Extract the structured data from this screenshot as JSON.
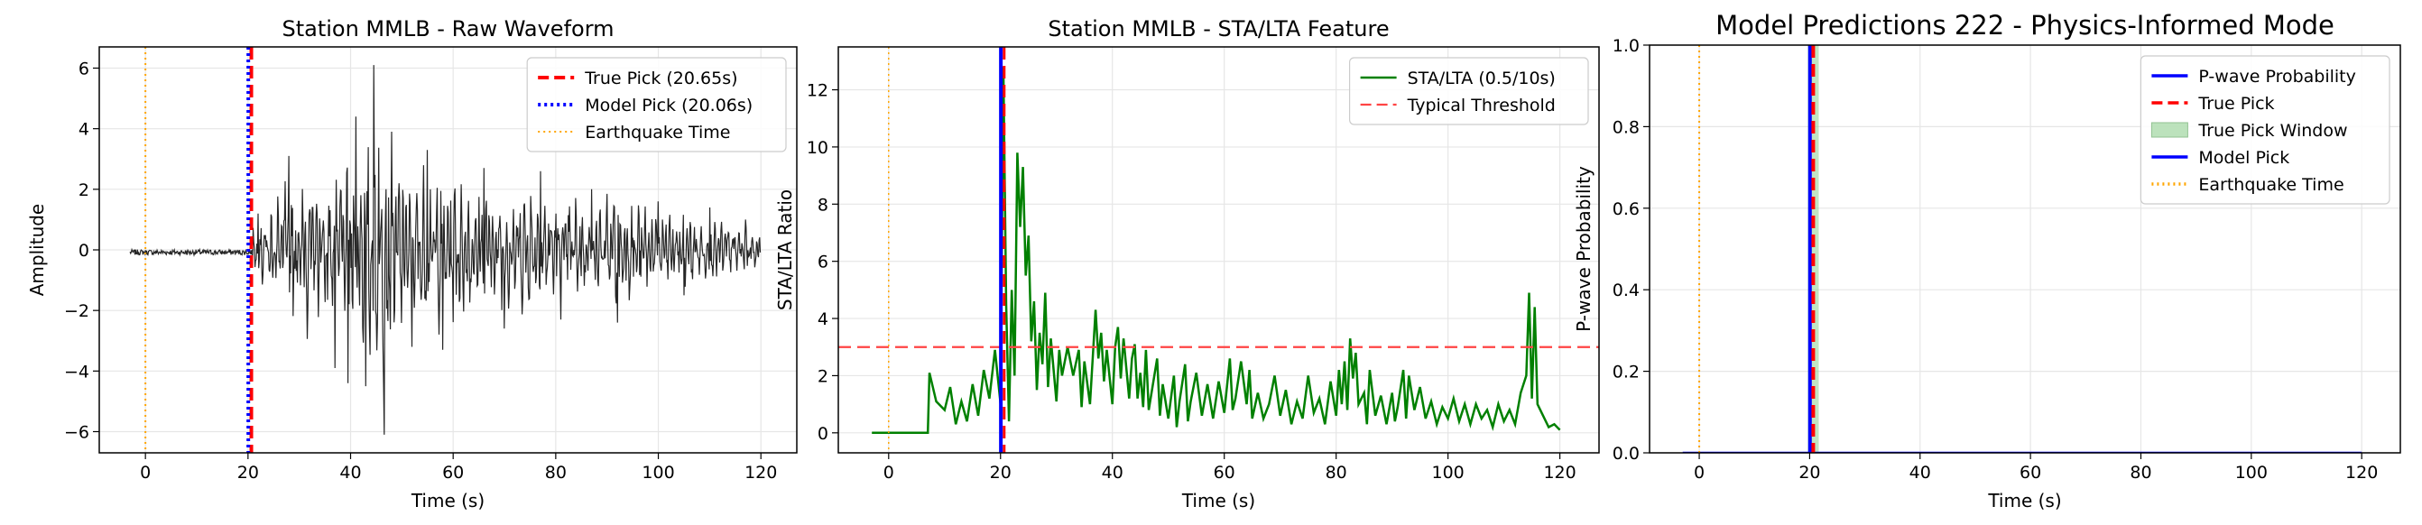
{
  "chart_data": [
    {
      "type": "line",
      "title": "Station MMLB - Raw Waveform",
      "xlabel": "Time (s)",
      "ylabel": "Amplitude",
      "xlim": [
        -9,
        127
      ],
      "ylim": [
        -6.7,
        6.7
      ],
      "xticks": [
        0,
        20,
        40,
        60,
        80,
        100,
        120
      ],
      "yticks": [
        -6,
        -4,
        -2,
        0,
        2,
        4,
        6
      ],
      "grid": true,
      "legend_position": "top-right",
      "waveform": {
        "x_start": -3,
        "x_end": 120,
        "pick_time": 20.65,
        "noise_amplitude": 0.15,
        "peaks": [
          {
            "x": 22.0,
            "y": 1.2
          },
          {
            "x": 28.0,
            "y": 3.1
          },
          {
            "x": 37.0,
            "y": -3.9
          },
          {
            "x": 39.5,
            "y": -4.4
          },
          {
            "x": 41.0,
            "y": 4.4
          },
          {
            "x": 43.0,
            "y": -4.5
          },
          {
            "x": 44.5,
            "y": 6.1
          },
          {
            "x": 46.5,
            "y": -6.1
          },
          {
            "x": 48.0,
            "y": 3.9
          },
          {
            "x": 52.0,
            "y": -3.2
          },
          {
            "x": 55.0,
            "y": 3.3
          },
          {
            "x": 58.0,
            "y": -3.3
          },
          {
            "x": 66.0,
            "y": 2.7
          },
          {
            "x": 70.0,
            "y": -2.6
          },
          {
            "x": 77.0,
            "y": 2.6
          },
          {
            "x": 81.0,
            "y": -2.3
          },
          {
            "x": 87.0,
            "y": 2.0
          },
          {
            "x": 92.0,
            "y": -2.4
          },
          {
            "x": 100.0,
            "y": 1.6
          },
          {
            "x": 105.0,
            "y": -1.5
          },
          {
            "x": 110.0,
            "y": 1.4
          },
          {
            "x": 117.0,
            "y": 1.0
          }
        ]
      },
      "vlines": [
        {
          "name": "True Pick (20.65s)",
          "x": 20.65,
          "color": "#ff0000",
          "style": "dashed"
        },
        {
          "name": "Model Pick (20.06s)",
          "x": 20.06,
          "color": "#0000ff",
          "style": "dotted"
        },
        {
          "name": "Earthquake Time",
          "x": 0,
          "color": "#ffa500",
          "style": "dotted"
        }
      ],
      "series_color": "#000000"
    },
    {
      "type": "line",
      "title": "Station MMLB - STA/LTA Feature",
      "xlabel": "Time (s)",
      "ylabel": "STA/LTA Ratio",
      "xlim": [
        -9,
        127
      ],
      "ylim": [
        -0.7,
        13.5
      ],
      "xticks": [
        0,
        20,
        40,
        60,
        80,
        100,
        120
      ],
      "yticks": [
        0,
        2,
        4,
        6,
        8,
        10,
        12
      ],
      "grid": true,
      "legend_position": "top-right",
      "series": [
        {
          "name": "STA/LTA (0.5/10s)",
          "color": "#008000",
          "points": [
            [
              -3,
              0
            ],
            [
              7,
              0
            ],
            [
              7.3,
              2.1
            ],
            [
              8.5,
              1.1
            ],
            [
              10,
              0.8
            ],
            [
              11,
              1.6
            ],
            [
              12,
              0.3
            ],
            [
              13,
              1.1
            ],
            [
              14,
              0.4
            ],
            [
              15,
              1.7
            ],
            [
              16,
              0.6
            ],
            [
              17,
              2.2
            ],
            [
              18,
              1.2
            ],
            [
              19,
              2.9
            ],
            [
              20,
              1.0
            ],
            [
              20.5,
              12.8
            ],
            [
              21,
              4.5
            ],
            [
              21.5,
              0.4
            ],
            [
              22,
              5.0
            ],
            [
              22.5,
              2.0
            ],
            [
              23,
              9.8
            ],
            [
              23.5,
              7.2
            ],
            [
              24,
              9.3
            ],
            [
              24.5,
              5.5
            ],
            [
              25,
              6.9
            ],
            [
              25.5,
              3.2
            ],
            [
              26,
              4.6
            ],
            [
              26.5,
              1.5
            ],
            [
              27,
              3.5
            ],
            [
              27.5,
              2.4
            ],
            [
              28,
              4.9
            ],
            [
              28.5,
              1.6
            ],
            [
              29,
              3.3
            ],
            [
              30,
              1.1
            ],
            [
              30.5,
              2.9
            ],
            [
              31,
              2.0
            ],
            [
              32,
              3.0
            ],
            [
              33,
              2.0
            ],
            [
              34,
              2.9
            ],
            [
              34.5,
              0.9
            ],
            [
              35,
              2.5
            ],
            [
              36,
              1.0
            ],
            [
              37,
              4.3
            ],
            [
              37.5,
              2.6
            ],
            [
              38,
              3.5
            ],
            [
              38.5,
              1.8
            ],
            [
              39,
              2.9
            ],
            [
              40,
              1.0
            ],
            [
              40.5,
              3.0
            ],
            [
              41,
              3.7
            ],
            [
              41.5,
              1.9
            ],
            [
              42,
              3.3
            ],
            [
              43,
              1.2
            ],
            [
              43.5,
              2.6
            ],
            [
              44,
              3.1
            ],
            [
              44.5,
              1.2
            ],
            [
              45,
              2.1
            ],
            [
              45.5,
              0.9
            ],
            [
              46,
              2.9
            ],
            [
              46.5,
              0.8
            ],
            [
              47,
              1.4
            ],
            [
              48,
              2.6
            ],
            [
              48.5,
              0.6
            ],
            [
              49,
              1.7
            ],
            [
              50,
              0.5
            ],
            [
              51,
              2.0
            ],
            [
              51.5,
              0.2
            ],
            [
              52,
              1.1
            ],
            [
              53,
              2.4
            ],
            [
              53.5,
              0.4
            ],
            [
              54,
              1.1
            ],
            [
              55,
              2.1
            ],
            [
              56,
              0.6
            ],
            [
              57,
              1.7
            ],
            [
              58,
              0.5
            ],
            [
              59,
              1.8
            ],
            [
              60,
              0.7
            ],
            [
              61,
              2.6
            ],
            [
              61.5,
              0.8
            ],
            [
              62,
              1.2
            ],
            [
              63,
              2.5
            ],
            [
              64,
              1.0
            ],
            [
              64.5,
              2.2
            ],
            [
              65,
              0.5
            ],
            [
              66,
              1.4
            ],
            [
              67,
              0.5
            ],
            [
              68,
              1.0
            ],
            [
              69,
              2.0
            ],
            [
              70,
              0.6
            ],
            [
              71,
              1.5
            ],
            [
              72,
              0.3
            ],
            [
              73,
              1.1
            ],
            [
              74,
              0.5
            ],
            [
              75,
              2.0
            ],
            [
              76,
              0.7
            ],
            [
              77,
              1.2
            ],
            [
              78,
              0.3
            ],
            [
              79,
              1.8
            ],
            [
              80,
              0.6
            ],
            [
              80.5,
              2.2
            ],
            [
              81,
              1.0
            ],
            [
              81.5,
              2.5
            ],
            [
              82,
              0.8
            ],
            [
              82.5,
              3.3
            ],
            [
              83,
              1.9
            ],
            [
              83.5,
              2.8
            ],
            [
              84,
              1.0
            ],
            [
              85,
              1.4
            ],
            [
              85.5,
              0.3
            ],
            [
              86,
              2.2
            ],
            [
              87,
              0.6
            ],
            [
              88,
              1.3
            ],
            [
              89,
              0.3
            ],
            [
              90,
              1.4
            ],
            [
              90.5,
              0.4
            ],
            [
              91,
              0.9
            ],
            [
              92,
              2.2
            ],
            [
              92.5,
              0.5
            ],
            [
              93,
              2.0
            ],
            [
              94,
              0.8
            ],
            [
              95,
              1.6
            ],
            [
              96,
              0.5
            ],
            [
              97,
              1.1
            ],
            [
              98,
              0.3
            ],
            [
              99,
              0.9
            ],
            [
              100,
              0.5
            ],
            [
              101,
              1.2
            ],
            [
              102,
              0.4
            ],
            [
              103,
              1.0
            ],
            [
              104,
              0.3
            ],
            [
              105,
              1.0
            ],
            [
              106,
              0.5
            ],
            [
              107,
              0.8
            ],
            [
              108,
              0.2
            ],
            [
              109,
              1.0
            ],
            [
              110,
              0.4
            ],
            [
              111,
              0.8
            ],
            [
              112,
              0.3
            ],
            [
              113,
              1.4
            ],
            [
              114,
              2.0
            ],
            [
              114.5,
              4.9
            ],
            [
              115,
              1.2
            ],
            [
              115.5,
              4.4
            ],
            [
              116,
              1.0
            ],
            [
              117,
              0.6
            ],
            [
              118,
              0.2
            ],
            [
              119,
              0.3
            ],
            [
              120,
              0.1
            ]
          ]
        }
      ],
      "hlines": [
        {
          "name": "Typical Threshold",
          "y": 3.0,
          "color": "#ff4444",
          "style": "dashed"
        }
      ],
      "vlines": [
        {
          "x": 20.06,
          "color": "#0000ff",
          "style": "solid",
          "width": 4
        },
        {
          "x": 20.65,
          "color": "#ff0000",
          "style": "dashed",
          "width": 3
        },
        {
          "x": 0,
          "color": "#ffa500",
          "style": "dotted",
          "width": 1.5
        }
      ]
    },
    {
      "type": "line",
      "title": "Model Predictions 222 - Physics-Informed Mode",
      "xlabel": "Time (s)",
      "ylabel": "P-wave Probability",
      "xlim": [
        -9,
        127
      ],
      "ylim": [
        0,
        1
      ],
      "xticks": [
        0,
        20,
        40,
        60,
        80,
        100,
        120
      ],
      "yticks": [
        0.0,
        0.2,
        0.4,
        0.6,
        0.8,
        1.0
      ],
      "grid": true,
      "legend_position": "top-right",
      "series": [
        {
          "name": "P-wave Probability",
          "color": "#0000ff",
          "points": [
            [
              -3,
              0
            ],
            [
              120,
              0
            ]
          ]
        }
      ],
      "legend": [
        {
          "name": "P-wave Probability",
          "kind": "line",
          "color": "#0000ff",
          "style": "solid"
        },
        {
          "name": "True Pick",
          "kind": "line",
          "color": "#ff0000",
          "style": "dashed"
        },
        {
          "name": "True Pick Window",
          "kind": "patch",
          "color": "#90d090"
        },
        {
          "name": "Model Pick",
          "kind": "line",
          "color": "#0000ff",
          "style": "solid"
        },
        {
          "name": "Earthquake Time",
          "kind": "line",
          "color": "#ffa500",
          "style": "dotted"
        }
      ],
      "pick_window": [
        19.65,
        21.65
      ],
      "vlines": [
        {
          "x": 20.06,
          "color": "#0000ff",
          "style": "solid"
        },
        {
          "x": 20.65,
          "color": "#ff0000",
          "style": "dashed"
        },
        {
          "x": 0,
          "color": "#ffa500",
          "style": "dotted"
        }
      ]
    }
  ]
}
